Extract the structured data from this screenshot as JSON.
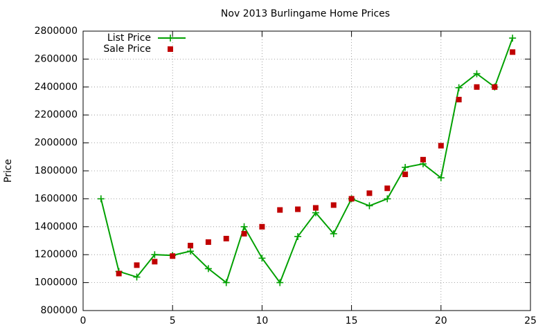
{
  "chart_data": {
    "type": "line",
    "title": "Nov 2013 Burlingame Home Prices",
    "y_label": "Price",
    "x": [
      1,
      2,
      3,
      4,
      5,
      6,
      7,
      8,
      9,
      10,
      11,
      12,
      13,
      14,
      15,
      16,
      17,
      18,
      19,
      20,
      21,
      22,
      23,
      24
    ],
    "series": [
      {
        "name": "List Price",
        "color": "#00a000",
        "marker": "plus",
        "line": true,
        "values": [
          1600000,
          1080000,
          1040000,
          1200000,
          1195000,
          1225000,
          1100000,
          1000000,
          1400000,
          1175000,
          1000000,
          1330000,
          1500000,
          1350000,
          1600000,
          1550000,
          1600000,
          1825000,
          1850000,
          1750000,
          2395000,
          2495000,
          2400000,
          2750000
        ]
      },
      {
        "name": "Sale Price",
        "color": "#c00000",
        "marker": "square",
        "line": false,
        "values": [
          null,
          1065000,
          1125000,
          1150000,
          1190000,
          1265000,
          1290000,
          1315000,
          1350000,
          1400000,
          1520000,
          1525000,
          1535000,
          1555000,
          1600000,
          1640000,
          1675000,
          1775000,
          1880000,
          1980000,
          2310000,
          2400000,
          2400000,
          2650000
        ]
      }
    ],
    "xlim": [
      0,
      25
    ],
    "xticks": [
      0,
      5,
      10,
      15,
      20,
      25
    ],
    "ylim": [
      800000,
      2800000
    ],
    "yticks": [
      800000,
      1000000,
      1200000,
      1400000,
      1600000,
      1800000,
      2000000,
      2200000,
      2400000,
      2600000,
      2800000
    ],
    "grid": true,
    "legend": "top-left"
  }
}
